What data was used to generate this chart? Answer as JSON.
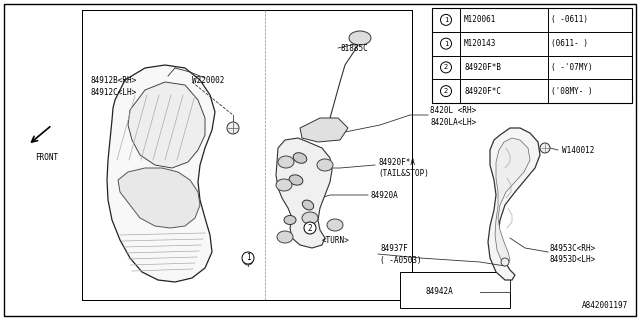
{
  "background_color": "#ffffff",
  "diagram_id": "A842001197",
  "legend": {
    "rows": [
      {
        "circle": "1",
        "part": "M120061",
        "range": "( -0611)"
      },
      {
        "circle": "1",
        "part": "M120143",
        "range": "(0611- )"
      },
      {
        "circle": "2",
        "part": "84920F*B",
        "range": "( -'07MY)"
      },
      {
        "circle": "2",
        "part": "84920F*C",
        "range": "('08MY- )"
      }
    ]
  }
}
